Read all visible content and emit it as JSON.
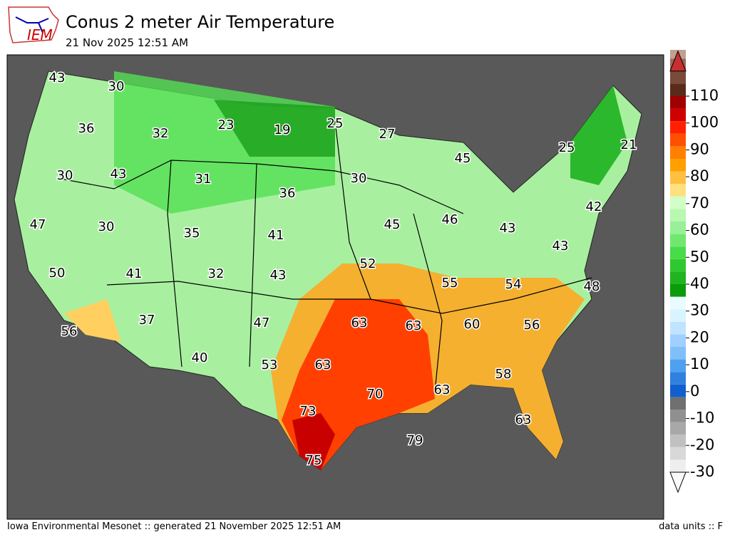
{
  "header": {
    "logo": "IEM",
    "title": "Conus 2 meter Air Temperature",
    "subtitle": "21 Nov 2025 12:51 AM"
  },
  "map": {
    "labels": [
      43,
      30,
      36,
      32,
      23,
      19,
      25,
      27,
      45,
      25,
      21,
      30,
      43,
      31,
      36,
      30,
      42,
      47,
      30,
      35,
      41,
      45,
      46,
      43,
      43,
      50,
      41,
      32,
      43,
      52,
      55,
      54,
      48,
      56,
      37,
      47,
      63,
      63,
      60,
      56,
      40,
      53,
      63,
      58,
      70,
      63,
      73,
      63,
      79,
      75
    ]
  },
  "colorbar": {
    "ticks": [
      110,
      100,
      90,
      80,
      70,
      60,
      50,
      40,
      30,
      20,
      10,
      0,
      -10,
      -20,
      -30
    ]
  },
  "footer": {
    "left": "Iowa Environmental Mesonet :: generated 21 November 2025 12:51 AM",
    "right": "data units :: F"
  }
}
